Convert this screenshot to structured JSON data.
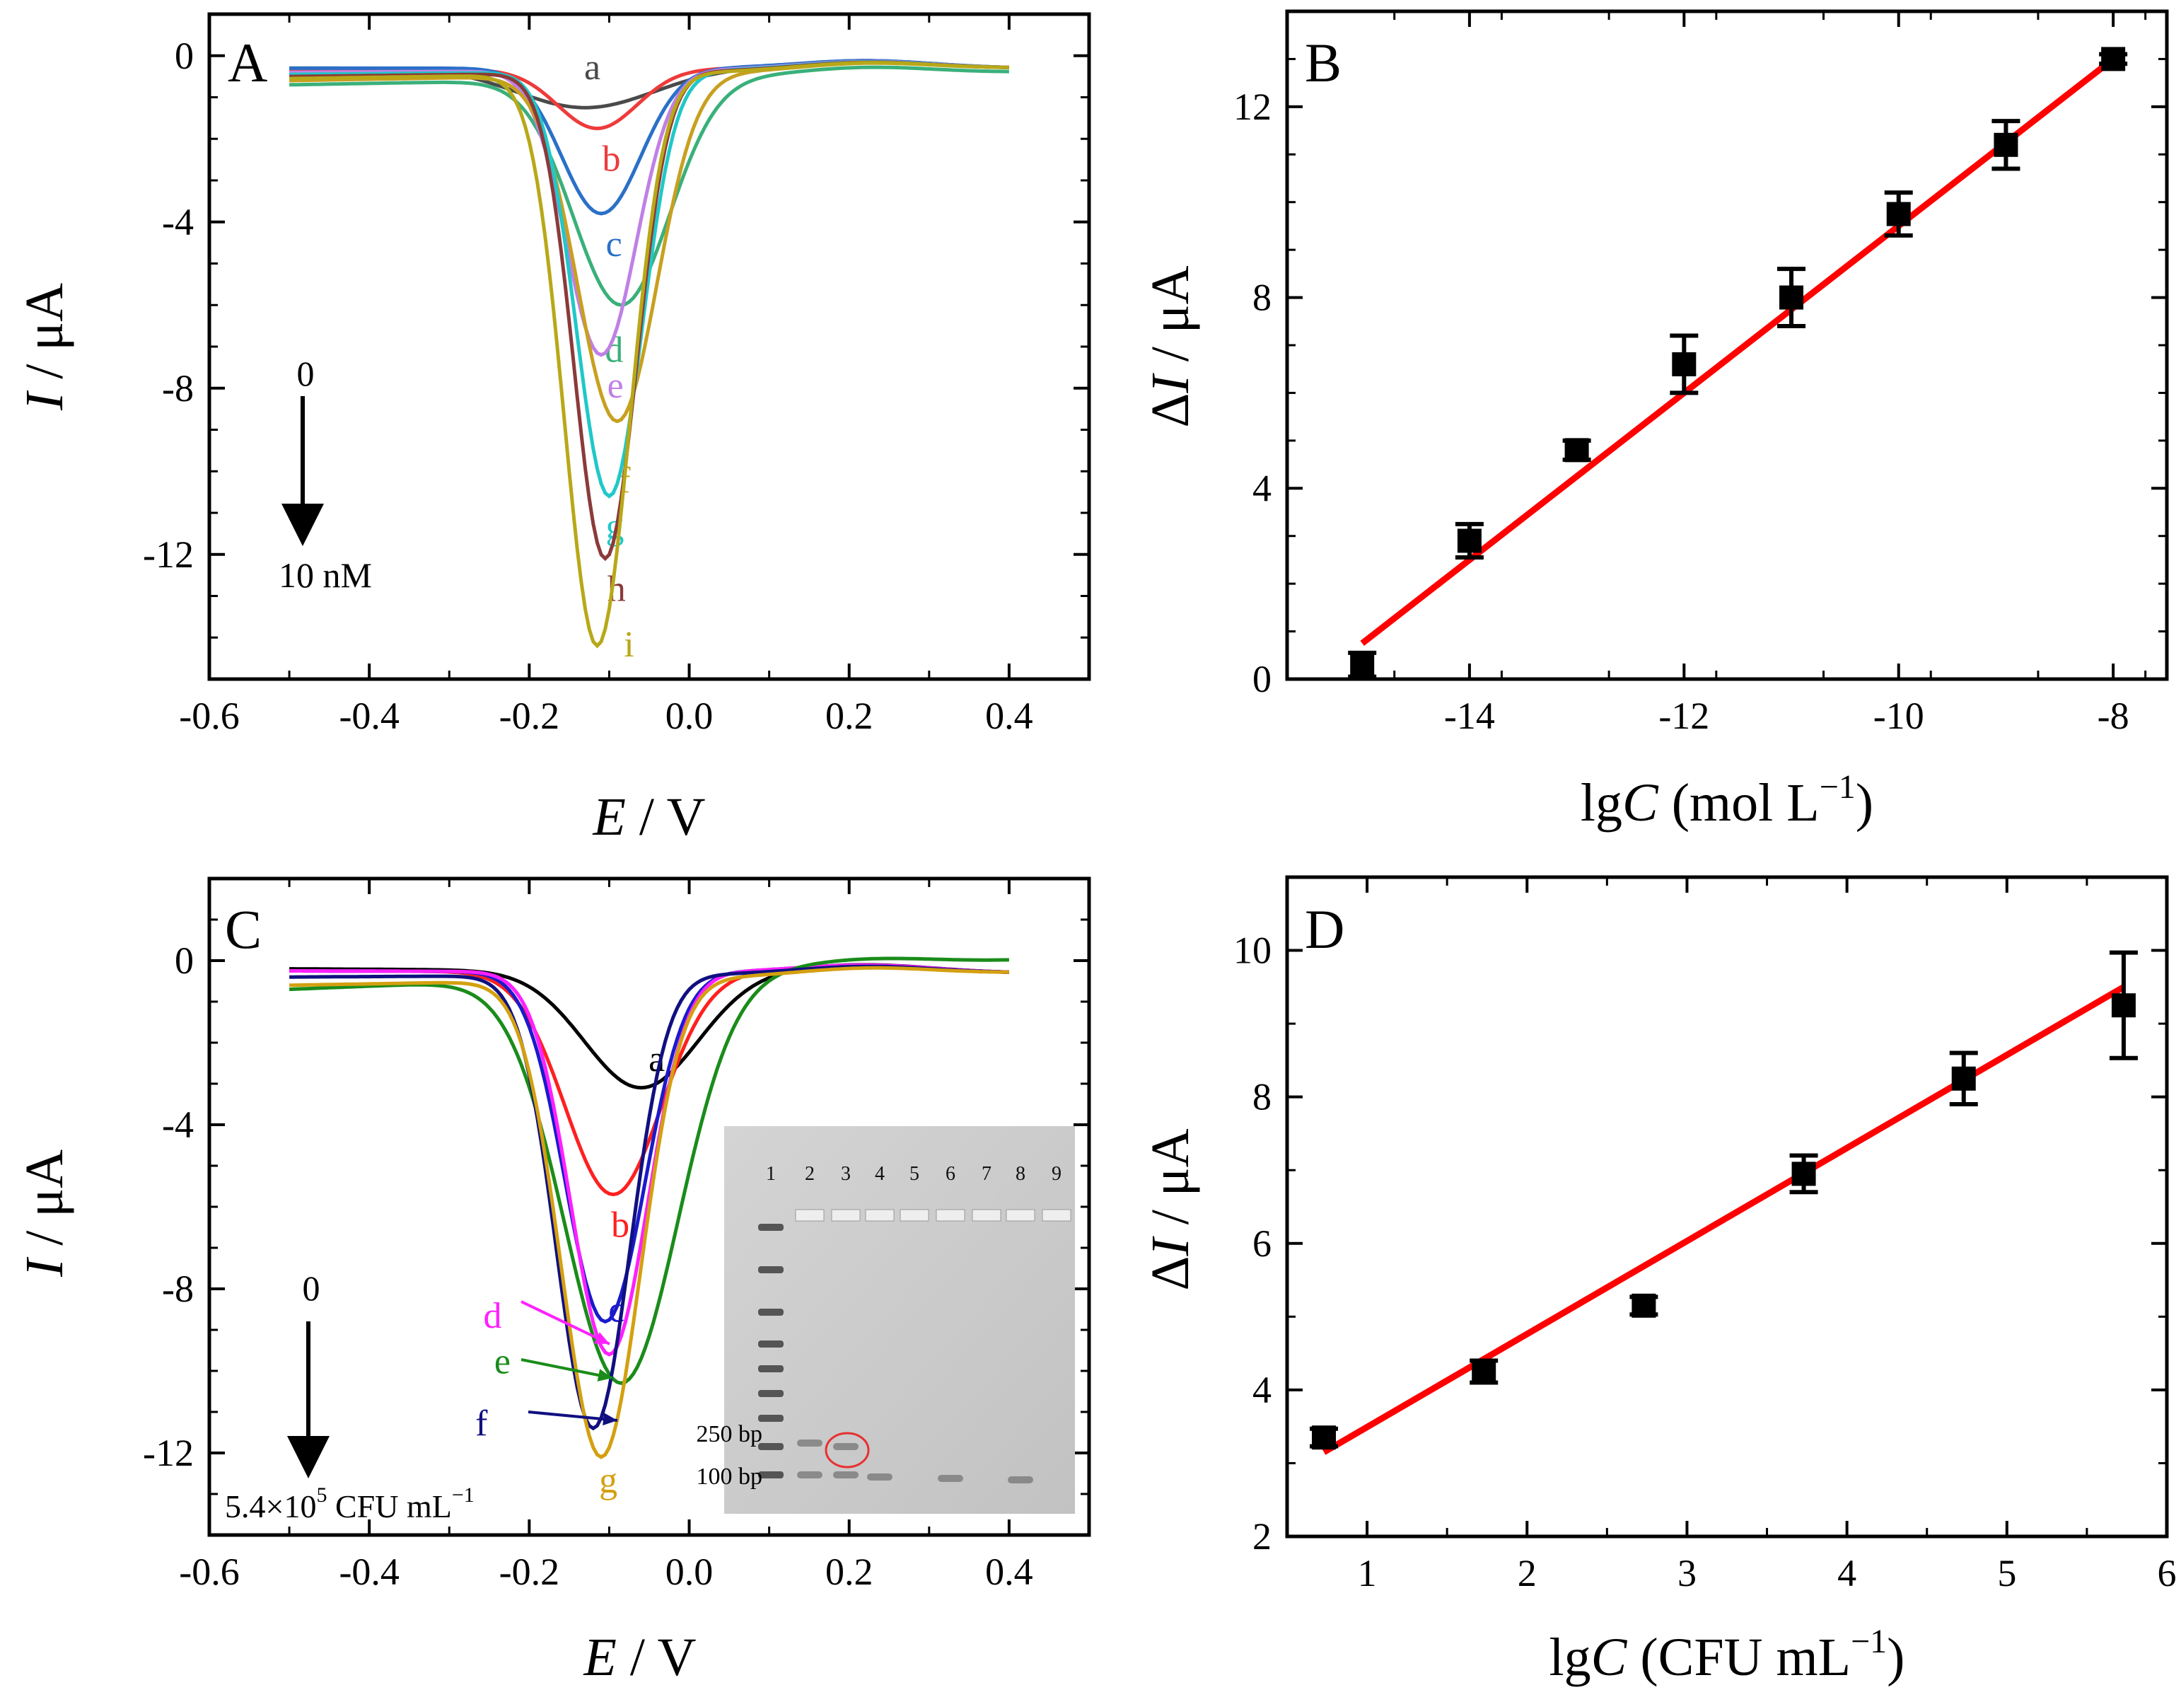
{
  "chart_data": [
    {
      "panel": "A",
      "type": "line",
      "panel_label": "A",
      "xlabel_italic": "E",
      "xlabel_rest": " / V",
      "ylabel_italic": "I",
      "ylabel_rest": " / μA",
      "xlim": [
        -0.6,
        0.5
      ],
      "ylim": [
        -15,
        1
      ],
      "xticks": [
        -0.6,
        -0.4,
        -0.2,
        0.0,
        0.2,
        0.4
      ],
      "xtick_labels": [
        "-0.6",
        "-0.4",
        "-0.2",
        "0.0",
        "0.2",
        "0.4"
      ],
      "yticks": [
        0,
        -4,
        -8,
        -12
      ],
      "ytick_labels": [
        "0",
        "-4",
        "-8",
        "-12"
      ],
      "arrow_top": "0",
      "arrow_bottom": "10 nM",
      "series": [
        {
          "name": "a",
          "label": "a",
          "color": "#4a4a4a",
          "peak_e": -0.13,
          "peak_i": -1.25,
          "width": 0.12,
          "base_left": -0.3,
          "base_right": -0.3
        },
        {
          "name": "b",
          "label": "b",
          "color": "#ee3b3b",
          "peak_e": -0.115,
          "peak_i": -1.75,
          "width": 0.07,
          "base_left": -0.35,
          "base_right": -0.3
        },
        {
          "name": "c",
          "label": "c",
          "color": "#2a70c8",
          "peak_e": -0.11,
          "peak_i": -3.8,
          "width": 0.07,
          "base_left": -0.3,
          "base_right": -0.3
        },
        {
          "name": "d",
          "label": "d",
          "color": "#3ab07a",
          "peak_e": -0.085,
          "peak_i": -6.0,
          "width": 0.085,
          "base_left": -0.7,
          "base_right": -0.4
        },
        {
          "name": "e",
          "label": "e",
          "color": "#c080e6",
          "peak_e": -0.11,
          "peak_i": -7.2,
          "width": 0.062,
          "base_left": -0.4,
          "base_right": -0.3
        },
        {
          "name": "f",
          "label": "f",
          "color": "#c8a020",
          "peak_e": -0.09,
          "peak_i": -8.8,
          "width": 0.07,
          "base_left": -0.6,
          "base_right": -0.3
        },
        {
          "name": "g",
          "label": "g",
          "color": "#20c8c8",
          "peak_e": -0.1,
          "peak_i": -10.6,
          "width": 0.058,
          "base_left": -0.45,
          "base_right": -0.3
        },
        {
          "name": "h",
          "label": "h",
          "color": "#8b3a3a",
          "peak_e": -0.105,
          "peak_i": -12.1,
          "width": 0.055,
          "base_left": -0.5,
          "base_right": -0.3
        },
        {
          "name": "i",
          "label": "i",
          "color": "#b8a818",
          "peak_e": -0.115,
          "peak_i": -14.2,
          "width": 0.058,
          "base_left": -0.55,
          "base_right": -0.3
        }
      ]
    },
    {
      "panel": "B",
      "type": "scatter",
      "panel_label": "B",
      "xlabel_pre": "lg",
      "xlabel_italic": "C",
      "xlabel_rest": " (mol L",
      "xlabel_sup": "−1",
      "xlabel_close": ")",
      "ylabel_pre": "Δ",
      "ylabel_italic": "I",
      "ylabel_rest": " / μA",
      "xlim": [
        -15.7,
        -7.5
      ],
      "ylim": [
        0,
        14
      ],
      "xticks": [
        -14,
        -12,
        -10,
        -8
      ],
      "xtick_labels": [
        "-14",
        "-12",
        "-10",
        "-8"
      ],
      "yticks": [
        0,
        4,
        8,
        12
      ],
      "ytick_labels": [
        "0",
        "4",
        "8",
        "12"
      ],
      "x": [
        -15,
        -14,
        -13,
        -12,
        -11,
        -10,
        -9,
        -8
      ],
      "y": [
        0.3,
        2.9,
        4.8,
        6.6,
        8.0,
        9.75,
        11.2,
        13.0
      ],
      "yerr": [
        0.25,
        0.35,
        0.2,
        0.6,
        0.6,
        0.45,
        0.5,
        0.1
      ],
      "fit": {
        "x": [
          -15,
          -8
        ],
        "y": [
          0.75,
          13.0
        ],
        "color": "#ff0000"
      }
    },
    {
      "panel": "C",
      "type": "line",
      "panel_label": "C",
      "xlabel_italic": "E",
      "xlabel_rest": " / V",
      "ylabel_italic": "I",
      "ylabel_rest": " / μA",
      "xlim": [
        -0.6,
        0.5
      ],
      "ylim": [
        -14,
        2
      ],
      "xticks": [
        -0.6,
        -0.4,
        -0.2,
        0.0,
        0.2,
        0.4
      ],
      "xtick_labels": [
        "-0.6",
        "-0.4",
        "-0.2",
        "0.0",
        "0.2",
        "0.4"
      ],
      "yticks": [
        0,
        -4,
        -8,
        -12
      ],
      "ytick_labels": [
        "0",
        "-4",
        "-8",
        "-12"
      ],
      "arrow_top": "0",
      "arrow_bottom_main": "5.4×10",
      "arrow_bottom_sup": "5",
      "arrow_bottom_rest": " CFU mL",
      "arrow_bottom_sup2": "−1",
      "series": [
        {
          "name": "a",
          "label": "a",
          "color": "#000000",
          "peak_e": -0.06,
          "peak_i": -3.1,
          "width": 0.1,
          "base_left": -0.2,
          "base_right": -0.3
        },
        {
          "name": "b",
          "label": "b",
          "color": "#ff2020",
          "peak_e": -0.095,
          "peak_i": -5.7,
          "width": 0.085,
          "base_left": -0.25,
          "base_right": -0.3
        },
        {
          "name": "c",
          "label": "c",
          "color": "#1a1acc",
          "peak_e": -0.105,
          "peak_i": -8.8,
          "width": 0.07,
          "base_left": -0.25,
          "base_right": -0.3
        },
        {
          "name": "d",
          "label": "d",
          "color": "#ff20ff",
          "peak_e": -0.1,
          "peak_i": -9.6,
          "width": 0.068,
          "base_left": -0.25,
          "base_right": -0.3
        },
        {
          "name": "e",
          "label": "e",
          "color": "#1a8c1a",
          "peak_e": -0.085,
          "peak_i": -10.3,
          "width": 0.1,
          "base_left": -0.7,
          "base_right": 0.0
        },
        {
          "name": "f",
          "label": "f",
          "color": "#101080",
          "peak_e": -0.12,
          "peak_i": -11.4,
          "width": 0.065,
          "base_left": -0.4,
          "base_right": -0.3
        },
        {
          "name": "g",
          "label": "g",
          "color": "#d4a010",
          "peak_e": -0.11,
          "peak_i": -12.1,
          "width": 0.07,
          "base_left": -0.6,
          "base_right": -0.3
        }
      ],
      "inset": {
        "lane_labels": [
          "1",
          "2",
          "3",
          "4",
          "5",
          "6",
          "7",
          "8",
          "9"
        ],
        "band_label_250": "250 bp",
        "band_label_100": "100 bp"
      }
    },
    {
      "panel": "D",
      "type": "scatter",
      "panel_label": "D",
      "xlabel_pre": "lg",
      "xlabel_italic": "C",
      "xlabel_rest": " (CFU mL",
      "xlabel_sup": "−1",
      "xlabel_close": ")",
      "ylabel_pre": "Δ",
      "ylabel_italic": "I",
      "ylabel_rest": " / μA",
      "xlim": [
        0.5,
        6
      ],
      "ylim": [
        2,
        11
      ],
      "xticks": [
        1,
        2,
        3,
        4,
        5,
        6
      ],
      "xtick_labels": [
        "1",
        "2",
        "3",
        "4",
        "5",
        "6"
      ],
      "yticks": [
        2,
        4,
        6,
        8,
        10
      ],
      "ytick_labels": [
        "2",
        "4",
        "6",
        "8",
        "10"
      ],
      "x": [
        0.73,
        1.73,
        2.73,
        3.73,
        4.73,
        5.73
      ],
      "y": [
        3.35,
        4.25,
        5.15,
        6.95,
        8.25,
        9.25
      ],
      "yerr": [
        0.12,
        0.15,
        0.12,
        0.25,
        0.35,
        0.72
      ],
      "fit": {
        "x": [
          0.73,
          5.73
        ],
        "y": [
          3.15,
          9.5
        ],
        "color": "#ff0000"
      }
    }
  ]
}
